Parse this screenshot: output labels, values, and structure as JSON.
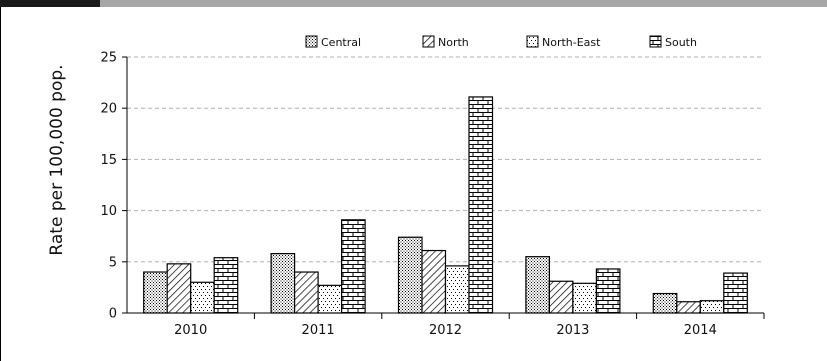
{
  "chart_data": {
    "type": "bar",
    "categories": [
      "2010",
      "2011",
      "2012",
      "2013",
      "2014"
    ],
    "series": [
      {
        "name": "Central",
        "values": [
          4.0,
          5.8,
          7.4,
          5.5,
          1.9
        ],
        "pattern": "dots"
      },
      {
        "name": "North",
        "values": [
          4.8,
          4.0,
          6.1,
          3.1,
          1.1
        ],
        "pattern": "diagonal"
      },
      {
        "name": "North-East",
        "values": [
          3.0,
          2.7,
          4.6,
          2.9,
          1.2
        ],
        "pattern": "sparse-dots"
      },
      {
        "name": "South",
        "values": [
          5.4,
          9.1,
          21.1,
          4.3,
          3.9
        ],
        "pattern": "brick"
      }
    ],
    "ylabel": "Rate per 100,000 pop.",
    "xlabel": "",
    "title": "",
    "ylim": [
      0,
      25
    ],
    "yticks": [
      0,
      5,
      10,
      15,
      20,
      25
    ],
    "grid": true,
    "legend_position": "top"
  },
  "colors": {
    "top_bar_left": "#1a1a1a",
    "top_bar_right": "#a6a6a6",
    "grid": "#b0b0b0",
    "axis": "#000000",
    "bar_stroke": "#000000"
  }
}
